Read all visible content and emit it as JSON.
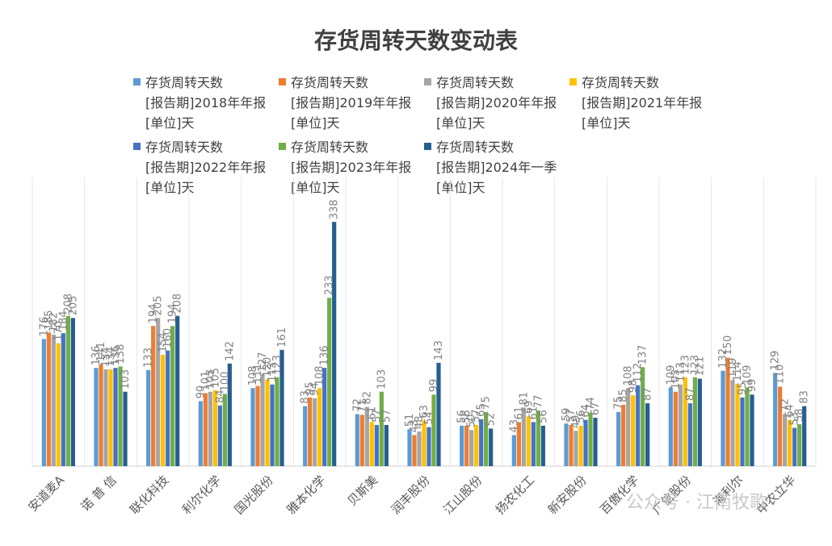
{
  "watermark": "公众号 · 江南牧歌",
  "chart_data": {
    "type": "bar",
    "title": "存货周转天数变动表",
    "xlabel": "",
    "ylabel": "",
    "ylim": [
      0,
      360
    ],
    "grid": false,
    "legend_position": "top",
    "categories": [
      "安道麦A",
      "诺 普 信",
      "联化科技",
      "利尔化学",
      "国光股份",
      "雅本化学",
      "贝斯美",
      "润丰股份",
      "江山股份",
      "扬农化工",
      "新安股份",
      "百傲化学",
      "广信股份",
      "海利尔",
      "中农立华"
    ],
    "series": [
      {
        "name": "存货周转天数[报告期]2018年年报[单位]天",
        "color": "#5b9bd5",
        "values": [
          176,
          136,
          133,
          90,
          108,
          83,
          72,
          51,
          56,
          43,
          59,
          75,
          109,
          132,
          129
        ]
      },
      {
        "name": "存货周转天数[报告期]2019年年报[单位]天",
        "color": "#ed7d31",
        "values": [
          185,
          141,
          194,
          101,
          111,
          95,
          71,
          43,
          56,
          61,
          57,
          85,
          103,
          150,
          110
        ]
      },
      {
        "name": "存货周转天数[报告期]2020年年报[单位]天",
        "color": "#a5a5a5",
        "values": [
          182,
          134,
          205,
          103,
          127,
          94,
          82,
          48,
          50,
          81,
          49,
          108,
          113,
          119,
          72
        ]
      },
      {
        "name": "存货周转天数[报告期]2021年年报[单位]天",
        "color": "#ffc000",
        "values": [
          170,
          134,
          154,
          105,
          120,
          108,
          61,
          63,
          57,
          69,
          56,
          98,
          123,
          114,
          64
        ]
      },
      {
        "name": "存货周转天数[报告期]2022年年报[单位]天",
        "color": "#4472c4",
        "values": [
          184,
          136,
          160,
          84,
          113,
          136,
          57,
          54,
          65,
          61,
          64,
          112,
          87,
          95,
          53
        ]
      },
      {
        "name": "存货周转天数[报告期]2023年年报[单位]天",
        "color": "#70ad47",
        "values": [
          208,
          138,
          194,
          100,
          123,
          233,
          103,
          99,
          75,
          77,
          74,
          137,
          123,
          109,
          58
        ]
      },
      {
        "name": "存货周转天数[报告期]2024年一季[单位]天",
        "color": "#255e91",
        "values": [
          205,
          103,
          208,
          142,
          161,
          338,
          57,
          143,
          52,
          56,
          67,
          87,
          121,
          99,
          83
        ]
      }
    ]
  }
}
